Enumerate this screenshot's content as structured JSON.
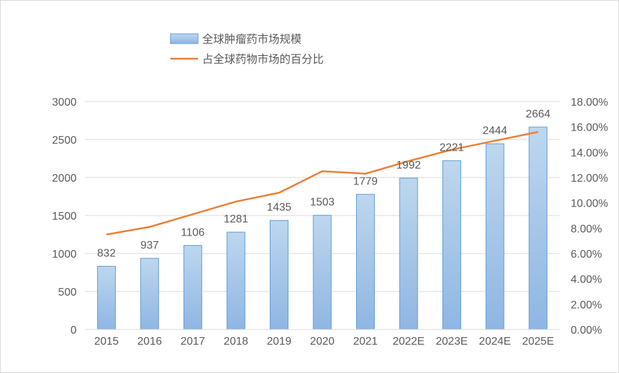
{
  "chart_data": {
    "type": "bar",
    "categories": [
      "2015",
      "2016",
      "2017",
      "2018",
      "2019",
      "2020",
      "2021",
      "2022E",
      "2023E",
      "2024E",
      "2025E"
    ],
    "series": [
      {
        "name": "全球肿瘤药市场规模",
        "type": "bar",
        "axis": "left",
        "values": [
          832,
          937,
          1106,
          1281,
          1435,
          1503,
          1779,
          1992,
          2221,
          2444,
          2664
        ],
        "color": "#9dc3e6"
      },
      {
        "name": "占全球药物市场的百分比",
        "type": "line",
        "axis": "right",
        "values": [
          7.5,
          8.1,
          9.1,
          10.1,
          10.8,
          12.5,
          12.3,
          13.3,
          14.2,
          14.9,
          15.6
        ],
        "color": "#ed7d31"
      }
    ],
    "y_left": {
      "lim": [
        0,
        3000
      ],
      "ticks": [
        "0",
        "500",
        "1000",
        "1500",
        "2000",
        "2500",
        "3000"
      ]
    },
    "y_right": {
      "lim": [
        0,
        18
      ],
      "ticks": [
        "0.00%",
        "2.00%",
        "4.00%",
        "6.00%",
        "8.00%",
        "10.00%",
        "12.00%",
        "14.00%",
        "16.00%",
        "18.00%"
      ]
    },
    "data_labels": [
      "832",
      "937",
      "1106",
      "1281",
      "1435",
      "1503",
      "1779",
      "1992",
      "2221",
      "2444",
      "2664"
    ],
    "grid": true,
    "legend_position": "top-left"
  },
  "colors": {
    "grid": "#d9d9d9",
    "bar_border": "#5b9bd5",
    "text": "#595959"
  }
}
